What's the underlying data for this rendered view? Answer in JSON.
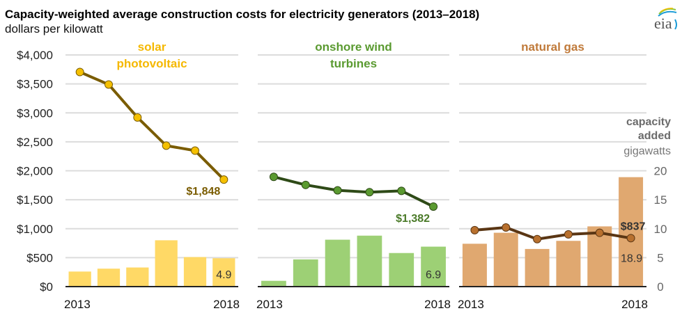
{
  "header": {
    "title": "Capacity-weighted average construction costs for electricity generators (2013–2018)",
    "subtitle": "dollars per kilowatt",
    "logo_text": "eia"
  },
  "chart_data": {
    "type": "bar+line",
    "title": "Capacity-weighted average construction costs for electricity generators (2013–2018)",
    "ylabel": "dollars per kilowatt",
    "ylim": [
      0,
      4000
    ],
    "yticks": [
      "$0",
      "$500",
      "$1,000",
      "$1,500",
      "$2,000",
      "$2,500",
      "$3,000",
      "$3,500",
      "$4,000"
    ],
    "y2label": "capacity added",
    "y2unit": "gigawatts",
    "y2lim": [
      0,
      20
    ],
    "y2ticks": [
      "0",
      "5",
      "10",
      "15",
      "20"
    ],
    "grid": true,
    "x": [
      2013,
      2014,
      2015,
      2016,
      2017,
      2018
    ],
    "xtick_labels": [
      "2013",
      "2018"
    ],
    "panels": [
      {
        "name": "solar photovoltaic",
        "title_lines": [
          "solar",
          "photovoltaic"
        ],
        "title_color": "#f5b800",
        "bar_color": "#ffd966",
        "line_color": "#7a5c00",
        "marker_color": "#f5c000",
        "cost": [
          3705,
          3490,
          2921,
          2434,
          2348,
          1848
        ],
        "capacity": [
          2.6,
          3.1,
          3.3,
          8.0,
          5.1,
          4.9
        ],
        "cost_label": "$1,848",
        "capacity_label": "4.9"
      },
      {
        "name": "onshore wind turbines",
        "title_lines": [
          "onshore wind",
          "turbines"
        ],
        "title_color": "#5a9a30",
        "bar_color": "#9dd075",
        "line_color": "#2e4a17",
        "marker_color": "#5a9a30",
        "cost": [
          1895,
          1756,
          1662,
          1631,
          1653,
          1382
        ],
        "capacity": [
          1.0,
          4.7,
          8.1,
          8.8,
          5.8,
          6.9
        ],
        "cost_label": "$1,382",
        "capacity_label": "6.9"
      },
      {
        "name": "natural gas",
        "title_lines": [
          "natural gas"
        ],
        "title_color": "#c07a3a",
        "bar_color": "#e0a870",
        "line_color": "#5a3614",
        "marker_color": "#b8702e",
        "cost": [
          974,
          1021,
          820,
          902,
          929,
          837
        ],
        "capacity": [
          7.4,
          9.3,
          6.5,
          7.9,
          10.4,
          18.9
        ],
        "cost_label": "$837",
        "capacity_label": "18.9"
      }
    ]
  }
}
